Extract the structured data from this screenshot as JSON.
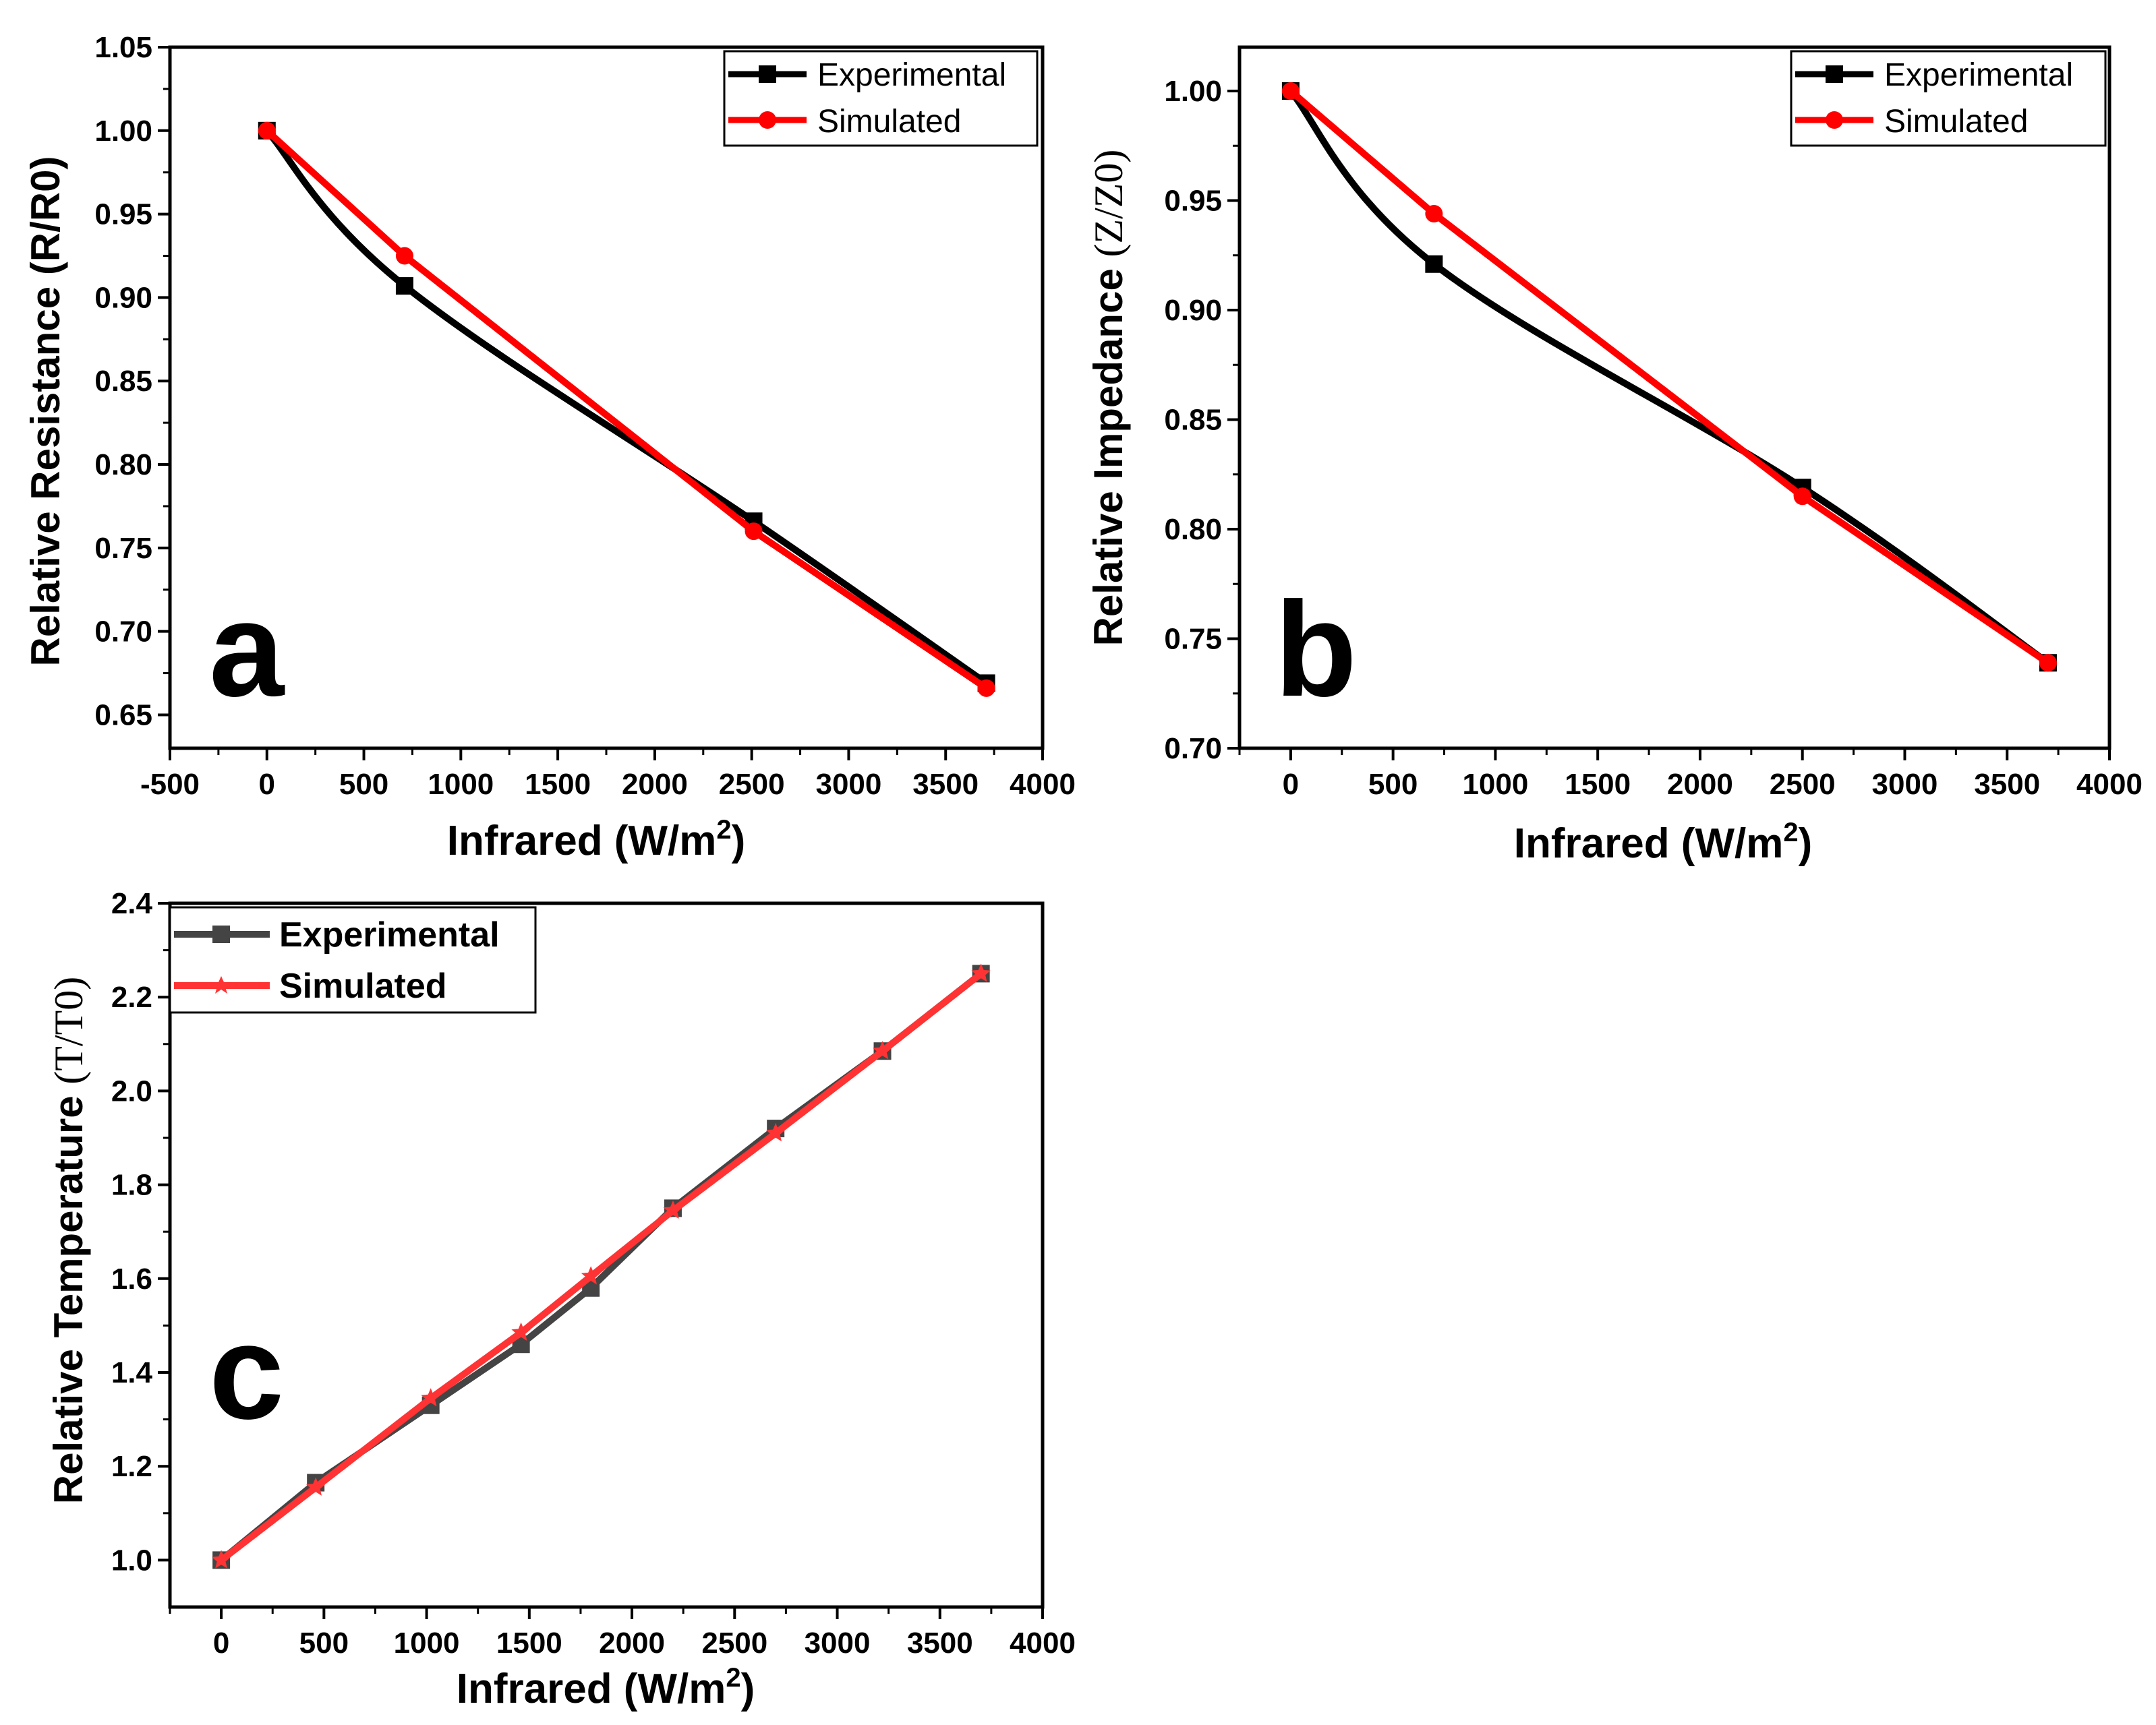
{
  "chart_data": [
    {
      "id": "a",
      "type": "line",
      "panel_label": "a",
      "xlabel": "Infrared (W/m",
      "xlabel_sup": "2",
      "xlabel_end": ")",
      "ylabel": "Relative Resistance (R/R0)",
      "xlim": [
        -500,
        4000
      ],
      "ylim": [
        0.63,
        1.05
      ],
      "x_ticks": [
        -500,
        0,
        500,
        1000,
        1500,
        2000,
        2500,
        3000,
        3500,
        4000
      ],
      "y_ticks": [
        0.65,
        0.7,
        0.75,
        0.8,
        0.85,
        0.9,
        0.95,
        1.0,
        1.05
      ],
      "y_tick_labels": [
        "0.65",
        "0.70",
        "0.75",
        "0.80",
        "0.85",
        "0.90",
        "0.95",
        "1.00",
        "1.05"
      ],
      "legend_position": "top-right",
      "series": [
        {
          "name": "Experimental",
          "color": "#000000",
          "marker": "square",
          "curve": "smooth",
          "x": [
            0,
            710,
            2510,
            3710
          ],
          "y": [
            1.0,
            0.907,
            0.766,
            0.669
          ]
        },
        {
          "name": "Simulated",
          "color": "#ff0000",
          "marker": "circle",
          "curve": "linear",
          "x": [
            0,
            710,
            2510,
            3710
          ],
          "y": [
            1.0,
            0.925,
            0.76,
            0.666
          ]
        }
      ]
    },
    {
      "id": "b",
      "type": "line",
      "panel_label": "b",
      "xlabel": "Infrared (W/m",
      "xlabel_sup": "2",
      "xlabel_end": ")",
      "ylabel": "Relative Impedance ",
      "ylabel_serif": "(Z/Z0)",
      "xlim": [
        -250,
        4000
      ],
      "ylim": [
        0.7,
        1.02
      ],
      "x_ticks": [
        0,
        500,
        1000,
        1500,
        2000,
        2500,
        3000,
        3500,
        4000
      ],
      "y_ticks": [
        0.7,
        0.75,
        0.8,
        0.85,
        0.9,
        0.95,
        1.0
      ],
      "y_tick_labels": [
        "0.70",
        "0.75",
        "0.80",
        "0.85",
        "0.90",
        "0.95",
        "1.00"
      ],
      "legend_position": "top-right",
      "series": [
        {
          "name": "Experimental",
          "color": "#000000",
          "marker": "square",
          "curve": "smooth",
          "x": [
            0,
            700,
            2500,
            3700
          ],
          "y": [
            1.0,
            0.921,
            0.819,
            0.739
          ]
        },
        {
          "name": "Simulated",
          "color": "#ff0000",
          "marker": "circle",
          "curve": "linear",
          "x": [
            0,
            700,
            2500,
            3700
          ],
          "y": [
            1.0,
            0.944,
            0.815,
            0.739
          ]
        }
      ]
    },
    {
      "id": "c",
      "type": "line",
      "panel_label": "c",
      "xlabel": "Infrared (W/m",
      "xlabel_sup": "2",
      "xlabel_end": ")",
      "ylabel": "Relative Temperature ",
      "ylabel_serif": "(T/T0)",
      "xlim": [
        -250,
        4000
      ],
      "ylim": [
        0.9,
        2.4
      ],
      "x_ticks": [
        0,
        500,
        1000,
        1500,
        2000,
        2500,
        3000,
        3500,
        4000
      ],
      "y_ticks": [
        1.0,
        1.2,
        1.4,
        1.6,
        1.8,
        2.0,
        2.2,
        2.4
      ],
      "y_tick_labels": [
        "1.0",
        "1.2",
        "1.4",
        "1.6",
        "1.8",
        "2.0",
        "2.2",
        "2.4"
      ],
      "legend_position": "top-left",
      "series": [
        {
          "name": "Experimental",
          "color": "#444444",
          "marker": "square",
          "curve": "linear",
          "x": [
            0,
            460,
            1020,
            1460,
            1800,
            2200,
            2700,
            3220,
            3700
          ],
          "y": [
            1.0,
            1.165,
            1.33,
            1.46,
            1.58,
            1.75,
            1.92,
            2.085,
            2.25
          ]
        },
        {
          "name": "Simulated",
          "color": "#ff3333",
          "marker": "star",
          "curve": "linear",
          "x": [
            0,
            460,
            1020,
            1460,
            1800,
            2200,
            2700,
            3220,
            3700
          ],
          "y": [
            1.0,
            1.155,
            1.345,
            1.485,
            1.605,
            1.745,
            1.91,
            2.085,
            2.25
          ]
        }
      ]
    }
  ]
}
